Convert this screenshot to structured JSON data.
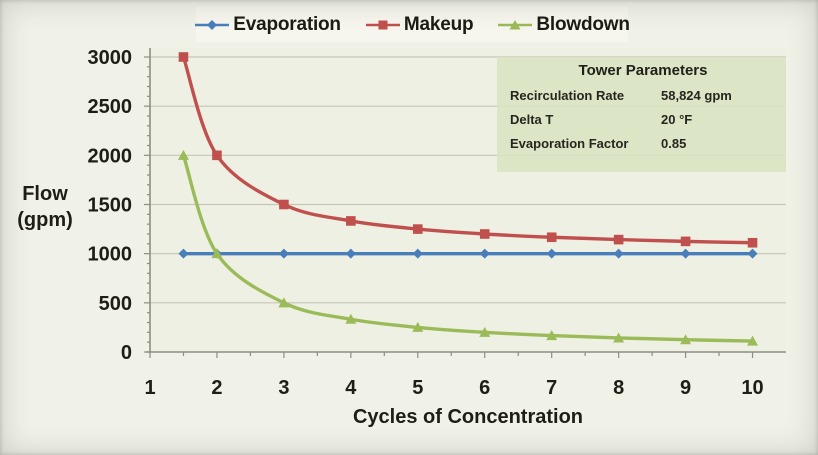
{
  "colors": {
    "page_bg": "#f0f1e7",
    "plot_bg": "#eef0e3",
    "gridline": "#c6c6b8",
    "axis_line": "#8e8e81",
    "text": "#1e1e17",
    "legend_bg": "#f6f6ee",
    "params_bg": "#dbe3c3",
    "evaporation": "#4a7ebb",
    "makeup": "#c0504d",
    "blowdown": "#9bbb59"
  },
  "legend": {
    "items": [
      {
        "label": "Evaporation",
        "color": "#4a7ebb",
        "marker": "diamond"
      },
      {
        "label": "Makeup",
        "color": "#c0504d",
        "marker": "square"
      },
      {
        "label": "Blowdown",
        "color": "#9bbb59",
        "marker": "triangle"
      }
    ]
  },
  "params_box": {
    "title": "Tower Parameters",
    "rows": [
      {
        "label": "Recirculation Rate",
        "value": "58,824 gpm"
      },
      {
        "label": "Delta T",
        "value": "20 °F"
      },
      {
        "label": "Evaporation Factor",
        "value": "0.85"
      }
    ]
  },
  "axis": {
    "ylabel_line1": "Flow",
    "ylabel_line2": "(gpm)",
    "xlabel": "Cycles of Concentration"
  },
  "chart_data": {
    "type": "line",
    "title": "",
    "xlabel": "Cycles of Concentration",
    "ylabel": "Flow (gpm)",
    "x": [
      1.5,
      2,
      3,
      4,
      5,
      6,
      7,
      8,
      9,
      10
    ],
    "series": [
      {
        "name": "Evaporation",
        "color": "#4a7ebb",
        "marker": "diamond",
        "values": [
          1000,
          1000,
          1000,
          1000,
          1000,
          1000,
          1000,
          1000,
          1000,
          1000
        ]
      },
      {
        "name": "Makeup",
        "color": "#c0504d",
        "marker": "square",
        "values": [
          3000,
          2000,
          1500,
          1333,
          1250,
          1200,
          1167,
          1143,
          1125,
          1111
        ]
      },
      {
        "name": "Blowdown",
        "color": "#9bbb59",
        "marker": "triangle",
        "values": [
          2000,
          1000,
          500,
          333,
          250,
          200,
          167,
          143,
          125,
          111
        ]
      }
    ],
    "xlim": [
      1,
      10.5
    ],
    "ylim": [
      0,
      3000
    ],
    "x_ticks": [
      1,
      2,
      3,
      4,
      5,
      6,
      7,
      8,
      9,
      10
    ],
    "y_ticks": [
      0,
      500,
      1000,
      1500,
      2000,
      2500,
      3000
    ],
    "x_minor_step": 0.5,
    "y_minor_step": 100,
    "grid": true,
    "legend_position": "top"
  }
}
